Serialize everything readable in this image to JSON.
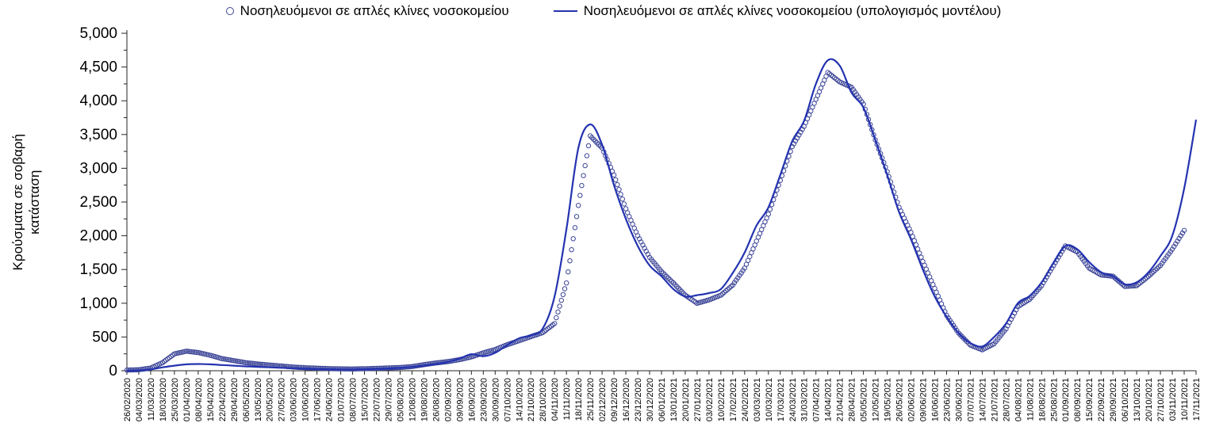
{
  "chart_data": {
    "type": "line",
    "title": "",
    "ylabel_lines": [
      "Κρούσματα σε σοβαρή",
      "κατάσταση"
    ],
    "ylim": [
      0,
      5000
    ],
    "ytick_step": 500,
    "ytick_labels": [
      "0",
      "500",
      "1,000",
      "1,500",
      "2,000",
      "2,500",
      "3,000",
      "3,500",
      "4,000",
      "4,500",
      "5,000"
    ],
    "legend_position": "top",
    "grid": false,
    "categories": [
      "26/02/2020",
      "04/03/2020",
      "11/03/2020",
      "18/03/2020",
      "25/03/2020",
      "01/04/2020",
      "08/04/2020",
      "15/04/2020",
      "22/04/2020",
      "29/04/2020",
      "06/05/2020",
      "13/05/2020",
      "20/05/2020",
      "27/05/2020",
      "03/06/2020",
      "10/06/2020",
      "17/06/2020",
      "24/06/2020",
      "01/07/2020",
      "08/07/2020",
      "15/07/2020",
      "22/07/2020",
      "29/07/2020",
      "05/08/2020",
      "12/08/2020",
      "19/08/2020",
      "26/08/2020",
      "02/09/2020",
      "09/09/2020",
      "16/09/2020",
      "23/09/2020",
      "30/09/2020",
      "07/10/2020",
      "14/10/2020",
      "21/10/2020",
      "28/10/2020",
      "04/11/2020",
      "11/11/2020",
      "18/11/2020",
      "25/11/2020",
      "02/12/2020",
      "09/12/2020",
      "16/12/2020",
      "23/12/2020",
      "30/12/2020",
      "06/01/2021",
      "13/01/2021",
      "20/01/2021",
      "27/01/2021",
      "03/02/2021",
      "10/02/2021",
      "17/02/2021",
      "24/02/2021",
      "03/03/2021",
      "10/03/2021",
      "17/03/2021",
      "24/03/2021",
      "31/03/2021",
      "07/04/2021",
      "14/04/2021",
      "21/04/2021",
      "28/04/2021",
      "05/05/2021",
      "12/05/2021",
      "19/05/2021",
      "26/05/2021",
      "02/06/2021",
      "09/06/2021",
      "16/06/2021",
      "23/06/2021",
      "30/06/2021",
      "07/07/2021",
      "14/07/2021",
      "21/07/2021",
      "28/07/2021",
      "04/08/2021",
      "11/08/2021",
      "18/08/2021",
      "25/08/2021",
      "01/09/2021",
      "08/09/2021",
      "15/09/2021",
      "22/09/2021",
      "29/09/2021",
      "06/10/2021",
      "13/10/2021",
      "20/10/2021",
      "27/10/2021",
      "03/11/2021",
      "10/11/2021",
      "17/11/2021"
    ],
    "series": [
      {
        "name": "Νοσηλευόμενοι σε απλές κλίνες νοσοκομείου",
        "type": "scatter",
        "marker": "circle",
        "color": "#3d4697",
        "values": [
          10,
          15,
          40,
          120,
          250,
          290,
          270,
          230,
          180,
          150,
          120,
          100,
          85,
          70,
          55,
          45,
          38,
          32,
          28,
          26,
          30,
          35,
          42,
          48,
          62,
          90,
          115,
          135,
          165,
          205,
          265,
          315,
          385,
          445,
          505,
          565,
          700,
          1300,
          2450,
          3480,
          3300,
          2900,
          2400,
          2000,
          1680,
          1470,
          1300,
          1120,
          1000,
          1050,
          1120,
          1270,
          1520,
          1920,
          2320,
          2820,
          3320,
          3620,
          4020,
          4420,
          4280,
          4200,
          3950,
          3420,
          2950,
          2420,
          2050,
          1620,
          1220,
          820,
          560,
          380,
          310,
          400,
          620,
          950,
          1060,
          1260,
          1560,
          1850,
          1760,
          1520,
          1420,
          1400,
          1250,
          1260,
          1400,
          1560,
          1800,
          2080,
          null
        ]
      },
      {
        "name": "Νοσηλευόμενοι σε απλές κλίνες νοσοκομείου (υπολογισμός μοντέλου)",
        "type": "line",
        "color": "#2433b0",
        "values": [
          0,
          5,
          20,
          50,
          75,
          95,
          100,
          95,
          85,
          75,
          65,
          58,
          50,
          44,
          36,
          30,
          26,
          22,
          20,
          20,
          23,
          28,
          34,
          42,
          56,
          76,
          100,
          130,
          180,
          245,
          215,
          265,
          380,
          480,
          525,
          625,
          1100,
          2100,
          3300,
          3650,
          3350,
          2750,
          2250,
          1850,
          1560,
          1400,
          1210,
          1100,
          1120,
          1150,
          1210,
          1450,
          1750,
          2150,
          2420,
          2900,
          3400,
          3700,
          4250,
          4600,
          4520,
          4120,
          3900,
          3420,
          2900,
          2350,
          1950,
          1500,
          1100,
          800,
          560,
          410,
          360,
          500,
          700,
          1000,
          1110,
          1310,
          1600,
          1850,
          1800,
          1610,
          1460,
          1400,
          1280,
          1310,
          1460,
          1700,
          2000,
          2700,
          3720
        ]
      }
    ]
  }
}
